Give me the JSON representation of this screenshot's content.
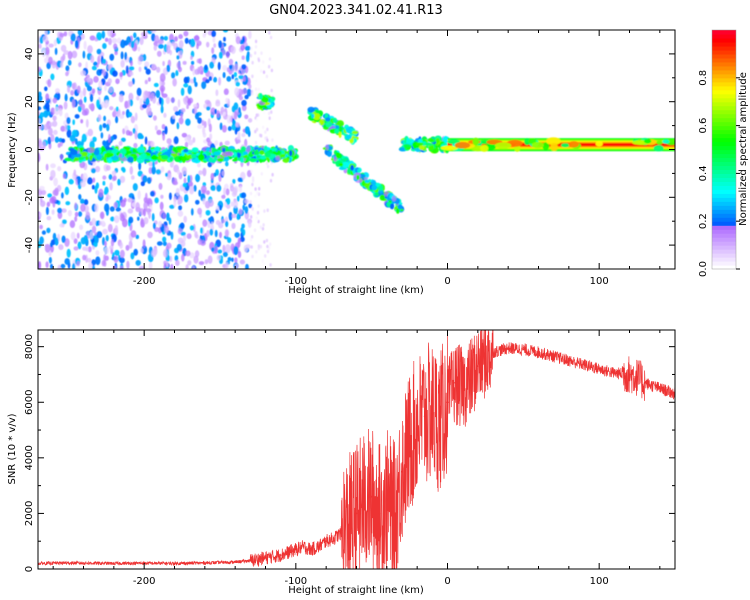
{
  "title": "GN04.2023.341.02.41.R13",
  "chart_data": [
    {
      "type": "heatmap",
      "xlabel": "Height of straight line (km)",
      "ylabel": "Frequency (Hz)",
      "xlim": [
        -270,
        150
      ],
      "ylim": [
        -50,
        50
      ],
      "xticks": [
        -200,
        -100,
        0,
        100
      ],
      "yticks": [
        -40,
        -20,
        0,
        20,
        40
      ],
      "colorbar": {
        "label": "Normalized spectral amplitude",
        "range": [
          0,
          1
        ],
        "ticks": [
          0.0,
          0.2,
          0.4,
          0.6,
          0.8
        ],
        "colormap": "rainbow"
      },
      "features": [
        {
          "x_range": [
            -270,
            -130
          ],
          "y_range": [
            -50,
            50
          ],
          "amplitude": 0.15,
          "description": "diffuse"
        },
        {
          "x_range": [
            -250,
            -100
          ],
          "y_center": -2,
          "amplitude": 0.35
        },
        {
          "x_range": [
            -125,
            -115
          ],
          "y_center": 20,
          "amplitude": 0.4
        },
        {
          "x_range": [
            -90,
            -60
          ],
          "y_center": [
            15,
            5
          ],
          "amplitude": 0.4
        },
        {
          "x_range": [
            -80,
            -30
          ],
          "y_center": [
            0,
            -25
          ],
          "amplitude": 0.35
        },
        {
          "x_range": [
            -30,
            0
          ],
          "y_center": 2,
          "amplitude": 0.4
        },
        {
          "x_range": [
            0,
            150
          ],
          "y_center": 2,
          "amplitude": 0.95
        }
      ]
    },
    {
      "type": "line",
      "xlabel": "Height of straight line (km)",
      "ylabel": "SNR (10 * v/v)",
      "xlim": [
        -270,
        150
      ],
      "ylim": [
        0,
        8600
      ],
      "xticks": [
        -200,
        -100,
        0,
        100
      ],
      "yticks": [
        0,
        2000,
        4000,
        6000,
        8000
      ],
      "color": "#ee3333",
      "series": [
        {
          "x": [
            -270,
            -250,
            -220,
            -200,
            -180,
            -160,
            -140,
            -130,
            -120,
            -110,
            -100,
            -95,
            -90,
            -85,
            -80,
            -75,
            -70,
            -65,
            -60,
            -55,
            -50,
            -45,
            -40,
            -35,
            -30,
            -25,
            -20,
            -15,
            -10,
            -5,
            0,
            5,
            10,
            15,
            20,
            25,
            30,
            40,
            50,
            60,
            70,
            80,
            90,
            100,
            110,
            120,
            125,
            130,
            140,
            150
          ],
          "y": [
            200,
            220,
            200,
            210,
            200,
            220,
            250,
            300,
            400,
            500,
            700,
            800,
            700,
            800,
            1000,
            1100,
            1300,
            1600,
            2000,
            2400,
            2600,
            2000,
            2500,
            2000,
            3500,
            4500,
            5200,
            5500,
            5600,
            5300,
            6000,
            6700,
            6500,
            6800,
            7300,
            7600,
            7800,
            7950,
            7900,
            7800,
            7650,
            7500,
            7350,
            7200,
            7050,
            7000,
            6900,
            6700,
            6500,
            6300
          ]
        }
      ]
    }
  ]
}
